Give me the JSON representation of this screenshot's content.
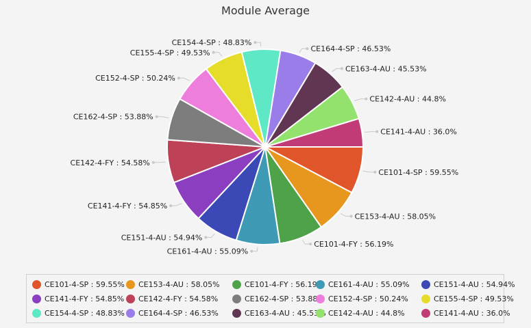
{
  "chart_data": {
    "type": "pie",
    "title": "Module Average",
    "slices": [
      {
        "label": "CE101-4-SP",
        "value": 59.55,
        "color": "#e0552a"
      },
      {
        "label": "CE153-4-AU",
        "value": 58.05,
        "color": "#e8971e"
      },
      {
        "label": "CE101-4-FY",
        "value": 56.19,
        "color": "#4ea24a"
      },
      {
        "label": "CE161-4-AU",
        "value": 55.09,
        "color": "#3f9ab5"
      },
      {
        "label": "CE151-4-AU",
        "value": 54.94,
        "color": "#3b49b6"
      },
      {
        "label": "CE141-4-FY",
        "value": 54.85,
        "color": "#8b3fc0"
      },
      {
        "label": "CE142-4-FY",
        "value": 54.58,
        "color": "#bd4257"
      },
      {
        "label": "CE162-4-SP",
        "value": 53.88,
        "color": "#7d7d7d"
      },
      {
        "label": "CE152-4-SP",
        "value": 50.24,
        "color": "#ee7edc"
      },
      {
        "label": "CE155-4-SP",
        "value": 49.53,
        "color": "#e6dd2a"
      },
      {
        "label": "CE154-4-SP",
        "value": 48.83,
        "color": "#5ee8c6"
      },
      {
        "label": "CE164-4-SP",
        "value": 46.53,
        "color": "#9a7de8"
      },
      {
        "label": "CE163-4-AU",
        "value": 45.53,
        "color": "#613652"
      },
      {
        "label": "CE142-4-AU",
        "value": 44.8,
        "color": "#93e26e"
      },
      {
        "label": "CE141-4-AU",
        "value": 36.0,
        "color": "#c13c76"
      }
    ],
    "legend": "bottom"
  }
}
